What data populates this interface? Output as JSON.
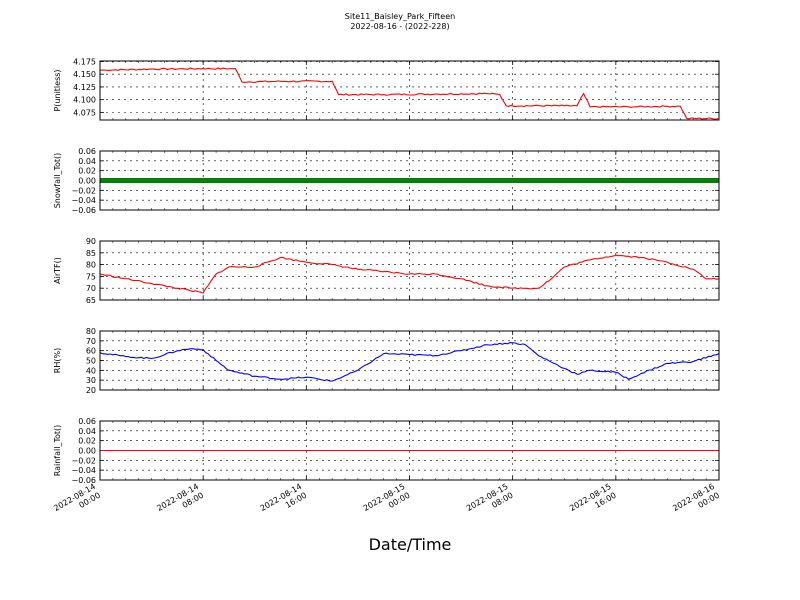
{
  "title": "Site11_Baisley_Park_Fifteen",
  "subtitle": "2022-08-16 - (2022-228)",
  "xlabel": "Date/Time",
  "x_ticks": [
    "2022-08-14\n00:00",
    "2022-08-14\n08:00",
    "2022-08-14\n16:00",
    "2022-08-15\n00:00",
    "2022-08-15\n08:00",
    "2022-08-15\n16:00",
    "2022-08-16\n00:00"
  ],
  "chart_data": [
    {
      "type": "line",
      "ylabel": "P(unitless)",
      "color": "#ff0000",
      "ylim": [
        4.06,
        4.176
      ],
      "yticks": [
        "4.075",
        "4.100",
        "4.125",
        "4.150",
        "4.175"
      ],
      "x_hours": [
        0,
        4,
        8,
        10.5,
        11,
        14,
        18,
        18.5,
        22,
        26,
        30,
        31,
        31.5,
        36,
        37,
        37.5,
        38,
        41,
        41.5,
        44,
        45,
        45.5,
        48
      ],
      "y": [
        4.158,
        4.16,
        4.161,
        4.161,
        4.135,
        4.136,
        4.136,
        4.11,
        4.11,
        4.111,
        4.112,
        4.11,
        4.088,
        4.088,
        4.088,
        4.112,
        4.086,
        4.086,
        4.086,
        4.087,
        4.087,
        4.063,
        4.063
      ],
      "grid": true
    },
    {
      "type": "scatter",
      "ylabel": "Snowfall_Tot()",
      "color": "#008000",
      "ylim": [
        -0.06,
        0.06
      ],
      "yticks": [
        "−0.06",
        "−0.04",
        "−0.02",
        "0.00",
        "0.02",
        "0.04",
        "0.06"
      ],
      "constant_value": 0.0,
      "grid": true
    },
    {
      "type": "line",
      "ylabel": "AirTF()",
      "color": "#ff0000",
      "ylim": [
        65,
        90
      ],
      "yticks": [
        "65",
        "70",
        "75",
        "80",
        "85",
        "90"
      ],
      "x_hours": [
        0,
        2,
        4,
        6,
        7,
        8,
        9,
        10,
        12,
        14,
        16,
        18,
        20,
        22,
        24,
        26,
        28,
        30,
        32,
        34,
        35,
        36,
        38,
        40,
        42,
        44,
        46,
        47,
        48
      ],
      "y": [
        76,
        74,
        72,
        70,
        69,
        68,
        76,
        79,
        79,
        83,
        81,
        80,
        78,
        77,
        76,
        76,
        74,
        71,
        70,
        70,
        74,
        79,
        82,
        84,
        83,
        81,
        78,
        74,
        74
      ],
      "grid": true
    },
    {
      "type": "line",
      "ylabel": "RH(%)",
      "color": "#0000ff",
      "ylim": [
        20,
        80
      ],
      "yticks": [
        "20",
        "30",
        "40",
        "50",
        "60",
        "70",
        "80"
      ],
      "x_hours": [
        0,
        2,
        4,
        6,
        7,
        8,
        9,
        10,
        12,
        14,
        16,
        18,
        20,
        22,
        24,
        26,
        28,
        30,
        32,
        33,
        34,
        36,
        37,
        38,
        40,
        41,
        42,
        44,
        46,
        48
      ],
      "y": [
        58,
        54,
        52,
        60,
        62,
        61,
        50,
        40,
        34,
        31,
        33,
        29,
        40,
        57,
        56,
        55,
        60,
        66,
        68,
        66,
        55,
        42,
        36,
        40,
        38,
        31,
        37,
        47,
        49,
        57
      ],
      "grid": true
    },
    {
      "type": "line",
      "ylabel": "Rainfall_Tot()",
      "color": "#ff0000",
      "ylim": [
        -0.06,
        0.06
      ],
      "yticks": [
        "−0.06",
        "−0.04",
        "−0.02",
        "0.00",
        "0.02",
        "0.04",
        "0.06"
      ],
      "constant_value": 0.0,
      "grid": true
    }
  ]
}
